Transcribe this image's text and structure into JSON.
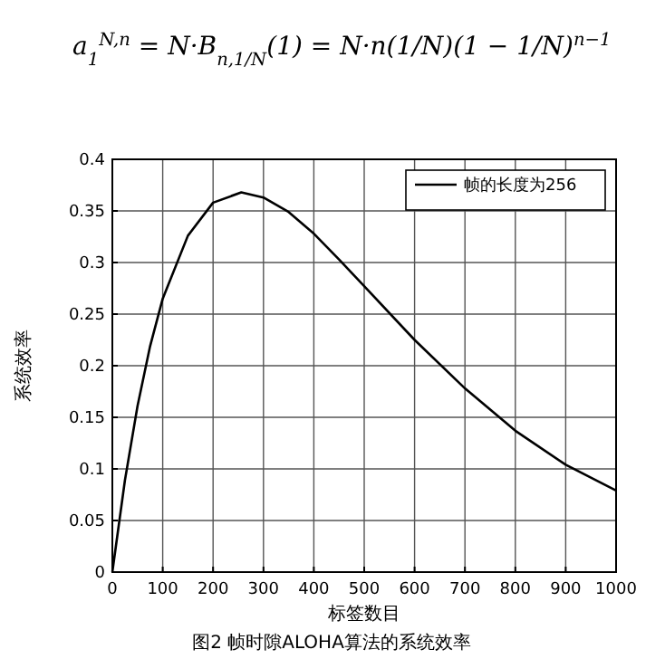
{
  "chart_data": {
    "type": "line",
    "title": "a$_{1}$$^{N,n}$ = N·B$_{n,1/N}$(1) = N·n(1/N)(1 − 1/N)$^{n−1}$",
    "xlabel": "标签数目",
    "ylabel": "系统效率",
    "annotations": [
      "图2 帧时隙ALOHA算法的系统效率"
    ],
    "series": [
      {
        "name": "帧的长度为256",
        "color": "#000000",
        "x": [
          0,
          25,
          50,
          75,
          100,
          150,
          200,
          256,
          300,
          350,
          400,
          450,
          500,
          600,
          700,
          800,
          900,
          1000
        ],
        "values": [
          0,
          0.089,
          0.161,
          0.219,
          0.265,
          0.326,
          0.358,
          0.368,
          0.363,
          0.349,
          0.328,
          0.303,
          0.277,
          0.225,
          0.178,
          0.137,
          0.104,
          0.079
        ]
      }
    ],
    "xlim": [
      0,
      1000
    ],
    "xticks": [
      0,
      100,
      200,
      300,
      400,
      500,
      600,
      700,
      800,
      900,
      1000
    ],
    "ylim": [
      0,
      0.4
    ],
    "yticks": [
      0,
      0.05,
      0.1,
      0.15,
      0.2,
      0.25,
      0.3,
      0.35,
      0.4
    ],
    "grid": true,
    "legend": "top right",
    "marker": "none",
    "line_style": "solid"
  }
}
